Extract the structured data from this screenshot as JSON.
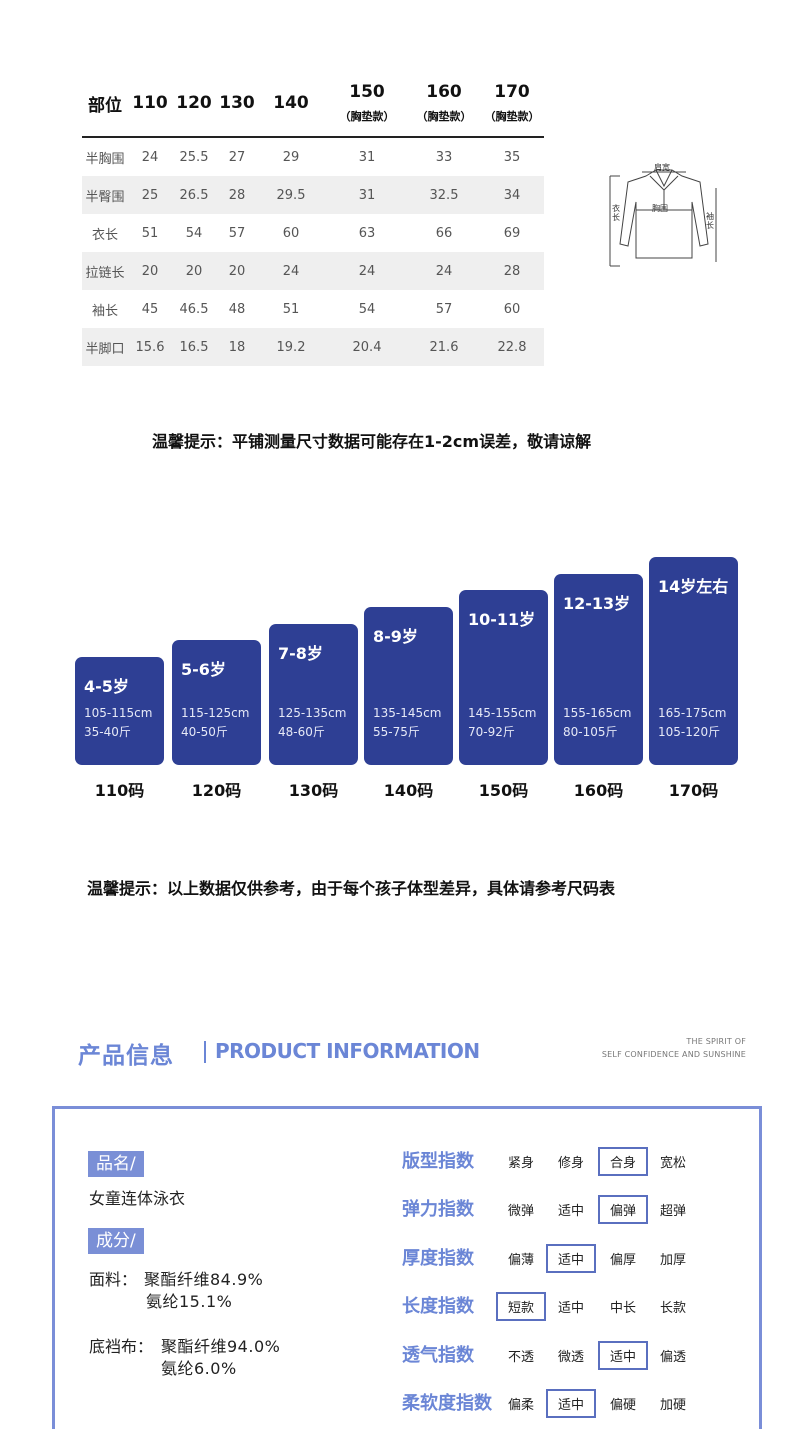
{
  "size_table": {
    "header": {
      "part": "部位",
      "sizes": [
        {
          "label": "110",
          "sub": ""
        },
        {
          "label": "120",
          "sub": ""
        },
        {
          "label": "130",
          "sub": ""
        },
        {
          "label": "140",
          "sub": ""
        },
        {
          "label": "150",
          "sub": "（胸垫款）"
        },
        {
          "label": "160",
          "sub": "（胸垫款）"
        },
        {
          "label": "170",
          "sub": "（胸垫款）"
        }
      ]
    },
    "rows": [
      {
        "part": "半胸围",
        "values": [
          "24",
          "25.5",
          "27",
          "29",
          "31",
          "33",
          "35"
        ]
      },
      {
        "part": "半臀围",
        "values": [
          "25",
          "26.5",
          "28",
          "29.5",
          "31",
          "32.5",
          "34"
        ]
      },
      {
        "part": "衣长",
        "values": [
          "51",
          "54",
          "57",
          "60",
          "63",
          "66",
          "69"
        ]
      },
      {
        "part": "拉链长",
        "values": [
          "20",
          "20",
          "20",
          "24",
          "24",
          "24",
          "28"
        ]
      },
      {
        "part": "袖长",
        "values": [
          "45",
          "46.5",
          "48",
          "51",
          "54",
          "57",
          "60"
        ]
      },
      {
        "part": "半脚口",
        "values": [
          "15.6",
          "16.5",
          "18",
          "19.2",
          "20.4",
          "21.6",
          "22.8"
        ]
      }
    ]
  },
  "sketch": {
    "shoulder": "肩宽",
    "chest": "胸围",
    "length": "衣长",
    "sleeve": "袖长"
  },
  "note1": "温馨提示：平铺测量尺寸数据可能存在1-2cm误差，敬请谅解",
  "age_cards": [
    {
      "age": "4-5岁",
      "height": "105-115cm",
      "weight": "35-40斤",
      "code": "110码"
    },
    {
      "age": "5-6岁",
      "height": "115-125cm",
      "weight": "40-50斤",
      "code": "120码"
    },
    {
      "age": "7-8岁",
      "height": "125-135cm",
      "weight": "48-60斤",
      "code": "130码"
    },
    {
      "age": "8-9岁",
      "height": "135-145cm",
      "weight": "55-75斤",
      "code": "140码"
    },
    {
      "age": "10-11岁",
      "height": "145-155cm",
      "weight": "70-92斤",
      "code": "150码"
    },
    {
      "age": "12-13岁",
      "height": "155-165cm",
      "weight": "80-105斤",
      "code": "160码"
    },
    {
      "age": "14岁左右",
      "height": "165-175cm",
      "weight": "105-120斤",
      "code": "170码"
    }
  ],
  "note2": "温馨提示：以上数据仅供参考，由于每个孩子体型差异，具体请参考尺码表",
  "product_info": {
    "title_cn": "产品信息",
    "title_en": "PRODUCT INFORMATION",
    "spirit_line1": "THE SPIRIT OF",
    "spirit_line2": "SELF CONFIDENCE AND SUNSHINE",
    "name_tag": "品名/",
    "name_value": "女童连体泳衣",
    "composition_tag": "成分/",
    "fabric_label": "面料：",
    "fabric_line1": "聚酯纤维84.9%",
    "fabric_line2": "氨纶15.1%",
    "lining_label": "底裆布：",
    "lining_line1": "聚酯纤维94.0%",
    "lining_line2": "氨纶6.0%",
    "indices": [
      {
        "label": "版型指数",
        "options": [
          "紧身",
          "修身",
          "合身",
          "宽松"
        ],
        "selected": "合身"
      },
      {
        "label": "弹力指数",
        "options": [
          "微弹",
          "适中",
          "偏弹",
          "超弹"
        ],
        "selected": "偏弹"
      },
      {
        "label": "厚度指数",
        "options": [
          "偏薄",
          "适中",
          "偏厚",
          "加厚"
        ],
        "selected": "适中"
      },
      {
        "label": "长度指数",
        "options": [
          "短款",
          "适中",
          "中长",
          "长款"
        ],
        "selected": "短款"
      },
      {
        "label": "透气指数",
        "options": [
          "不透",
          "微透",
          "适中",
          "偏透"
        ],
        "selected": "适中"
      },
      {
        "label": "柔软度指数",
        "options": [
          "偏柔",
          "适中",
          "偏硬",
          "加硬"
        ],
        "selected": "适中"
      }
    ]
  }
}
